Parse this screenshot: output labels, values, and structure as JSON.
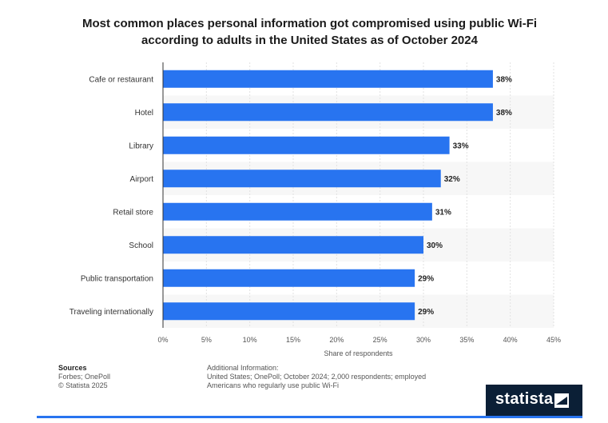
{
  "title_line1": "Most common places personal information got compromised using public Wi-Fi",
  "title_line2": "according to adults in the United States as of October 2024",
  "chart_data": {
    "type": "bar",
    "orientation": "horizontal",
    "categories": [
      "Cafe or restaurant",
      "Hotel",
      "Library",
      "Airport",
      "Retail store",
      "School",
      "Public transportation",
      "Traveling internationally"
    ],
    "values": [
      38,
      38,
      33,
      32,
      31,
      30,
      29,
      29
    ],
    "value_labels": [
      "38%",
      "38%",
      "33%",
      "32%",
      "31%",
      "30%",
      "29%",
      "29%"
    ],
    "xlabel": "Share of respondents",
    "xlim": [
      0,
      45
    ],
    "ticks": [
      0,
      5,
      10,
      15,
      20,
      25,
      30,
      35,
      40,
      45
    ],
    "tick_labels": [
      "0%",
      "5%",
      "10%",
      "15%",
      "20%",
      "25%",
      "30%",
      "35%",
      "40%",
      "45%"
    ],
    "bar_color": "#2874f0",
    "grid": true
  },
  "footer": {
    "sources_heading": "Sources",
    "sources_text": "Forbes; OnePoll",
    "copyright": "© Statista 2025",
    "additional_heading": "Additional Information:",
    "additional_text": "United States; OnePoll; October 2024; 2,000 respondents; employed Americans who regularly use public Wi-Fi"
  },
  "logo": {
    "text": "statista"
  }
}
